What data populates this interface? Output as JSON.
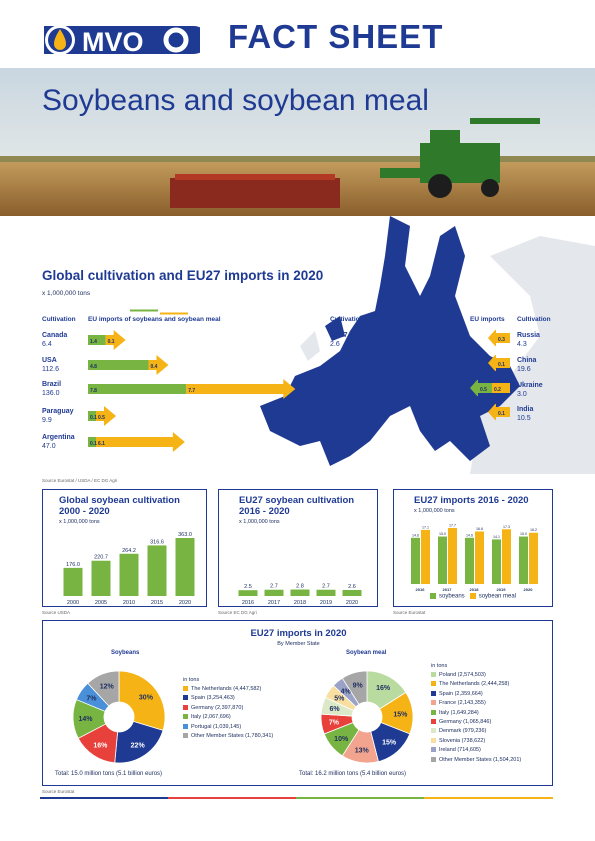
{
  "header": {
    "title": "FACT SHEET",
    "subtitle": "Soybeans and soybean meal",
    "logo_text": "MVO"
  },
  "colors": {
    "navy": "#1f3a93",
    "green": "#78b442",
    "yellow": "#f5b316"
  },
  "global": {
    "title": "Global cultivation and EU27 imports in 2020",
    "unit": "x 1,000,000 tons",
    "col_cultivation": "Cultivation",
    "col_imports": "EU imports of soybeans and soybean meal",
    "col_eu_imports": "EU imports",
    "source": "Source Eurostat / USDA / EC DG Agri",
    "left_rows": [
      {
        "country": "Canada",
        "value": "6.4",
        "beans": "1.4",
        "meal": "0.1",
        "beans_v": 1.4,
        "meal_v": 0.1
      },
      {
        "country": "USA",
        "value": "112.6",
        "beans": "4.8",
        "meal": "0.4",
        "beans_v": 4.8,
        "meal_v": 0.4
      },
      {
        "country": "Brazil",
        "value": "136.0",
        "beans": "7.8",
        "meal": "7.7",
        "beans_v": 7.8,
        "meal_v": 7.7
      },
      {
        "country": "Paraguay",
        "value": "9.9",
        "beans": "0.1",
        "meal": "0.5",
        "beans_v": 0.1,
        "meal_v": 0.5
      },
      {
        "country": "Argentina",
        "value": "47.0",
        "beans": "0.1",
        "meal": "6.1",
        "beans_v": 0.1,
        "meal_v": 6.1
      }
    ],
    "eu27": {
      "label": "Cultivation",
      "country": "EU27",
      "value": "2.6"
    },
    "right_rows": [
      {
        "country": "Russia",
        "value": "4.3",
        "beans": "",
        "meal": "0.3"
      },
      {
        "country": "China",
        "value": "19.6",
        "beans": "",
        "meal": "0.1"
      },
      {
        "country": "Ukraine",
        "value": "3.0",
        "beans": "0.5",
        "meal": "0.2"
      },
      {
        "country": "India",
        "value": "10.5",
        "beans": "",
        "meal": "0.1"
      }
    ]
  },
  "global_cult": {
    "title": "Global soybean cultivation 2000 - 2020",
    "unit": "x 1,000,000 tons",
    "source": "Source USDA"
  },
  "eu_cult": {
    "title": "EU27 soybean cultivation 2016 - 2020",
    "unit": "x 1,000,000 tons",
    "source": "Source EC DG Agri"
  },
  "eu_imp": {
    "title": "EU27 imports 2016 - 2020",
    "unit": "x 1,000,000 tons",
    "source": "Source Eurostat",
    "legend_beans": "soybeans",
    "legend_meal": "soybean meal"
  },
  "member": {
    "title": "EU27 imports in 2020",
    "subtitle": "By Member State",
    "in_tons": "in tons",
    "source": "Source Eurostat",
    "beans": {
      "title": "Soybeans",
      "total": "Total: 15.0 million tons (5.1 billion euros)",
      "legend": [
        {
          "label": "The Netherlands (4,447,582)",
          "color": "#f5b316"
        },
        {
          "label": "Spain (3,254,463)",
          "color": "#1f3a93"
        },
        {
          "label": "Germany (2,397,870)",
          "color": "#e8413c"
        },
        {
          "label": "Italy (2,067,696)",
          "color": "#78b442"
        },
        {
          "label": "Portugal (1,039,145)",
          "color": "#4a90d9"
        },
        {
          "label": "Other Member States (1,780,341)",
          "color": "#a6a6a6"
        }
      ]
    },
    "meal": {
      "title": "Soybean meal",
      "total": "Total: 16.2 million tons (5.4 billion euros)",
      "legend": [
        {
          "label": "Poland (2,574,503)",
          "color": "#b9dba0"
        },
        {
          "label": "The Netherlands (2,444,258)",
          "color": "#f5b316"
        },
        {
          "label": "Spain (2,359,664)",
          "color": "#1f3a93"
        },
        {
          "label": "France (2,143,355)",
          "color": "#f2a48e"
        },
        {
          "label": "Italy (1,649,284)",
          "color": "#78b442"
        },
        {
          "label": "Germany (1,065,846)",
          "color": "#e8413c"
        },
        {
          "label": "Denmark (979,236)",
          "color": "#dce9c8"
        },
        {
          "label": "Slovenia (738,622)",
          "color": "#f8dfa0"
        },
        {
          "label": "Ireland (714,605)",
          "color": "#9aa3c7"
        },
        {
          "label": "Other Member States (1,504,201)",
          "color": "#a6a6a6"
        }
      ]
    }
  },
  "chart_data": [
    {
      "type": "bar",
      "title": "Global soybean cultivation 2000 - 2020",
      "categories": [
        "2000",
        "2005",
        "2010",
        "2015",
        "2020"
      ],
      "values": [
        176.0,
        220.7,
        264.2,
        316.6,
        363.0
      ],
      "ylim": [
        0,
        363
      ]
    },
    {
      "type": "bar",
      "title": "EU27 soybean cultivation 2016 - 2020",
      "categories": [
        "2016",
        "2017",
        "2018",
        "2019",
        "2020"
      ],
      "values": [
        2.5,
        2.7,
        2.8,
        2.7,
        2.6
      ],
      "ylim": [
        0,
        25
      ]
    },
    {
      "type": "bar",
      "title": "EU27 imports 2016 - 2020",
      "categories": [
        "2016",
        "2017",
        "2018",
        "2019",
        "2020"
      ],
      "series": [
        {
          "name": "soybeans",
          "values": [
            14.6,
            15.0,
            14.6,
            14.1,
            15.0
          ]
        },
        {
          "name": "soybean meal",
          "values": [
            17.1,
            17.7,
            16.6,
            17.3,
            16.2
          ]
        }
      ],
      "ylim": [
        0,
        17.7
      ]
    },
    {
      "type": "pie",
      "title": "Soybeans",
      "categories": [
        "The Netherlands",
        "Spain",
        "Germany",
        "Italy",
        "Portugal",
        "Other Member States"
      ],
      "values": [
        30,
        22,
        16,
        14,
        7,
        12
      ]
    },
    {
      "type": "pie",
      "title": "Soybean meal",
      "categories": [
        "Poland",
        "The Netherlands",
        "Spain",
        "France",
        "Italy",
        "Germany",
        "Denmark",
        "Slovenia",
        "Ireland",
        "Other Member States"
      ],
      "values": [
        16,
        15,
        15,
        13,
        10,
        7,
        6,
        5,
        4,
        9
      ]
    }
  ]
}
